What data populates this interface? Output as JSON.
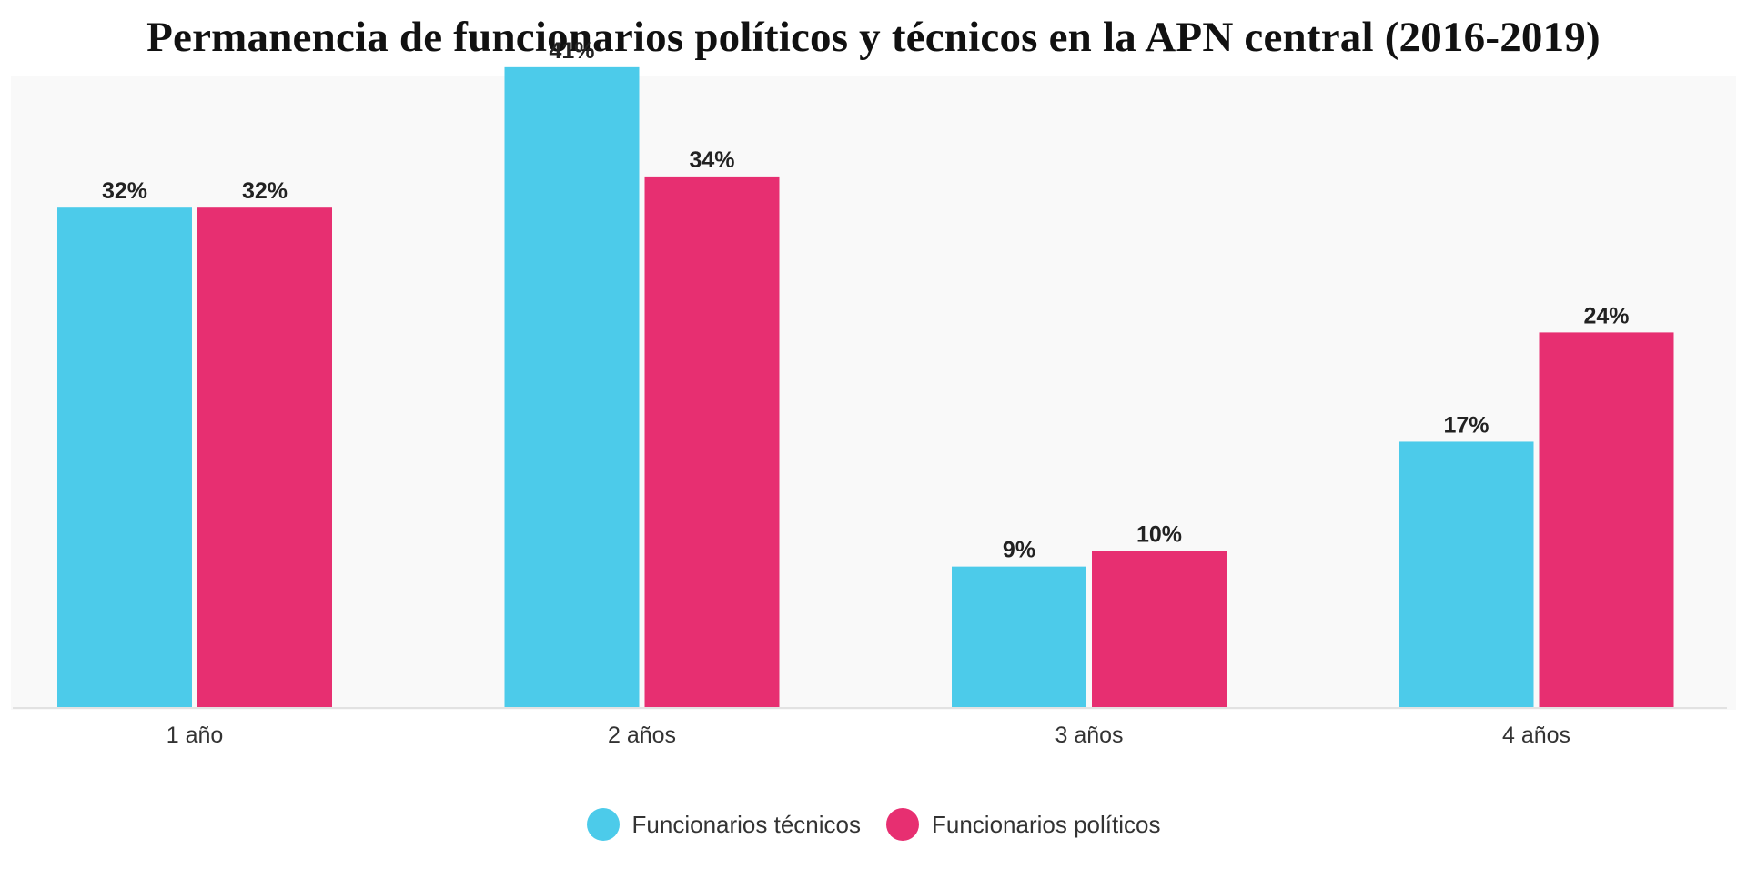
{
  "chart_data": {
    "type": "bar",
    "title": "Permanencia de funcionarios políticos y técnicos en la APN central (2016-2019)",
    "categories": [
      "1 año",
      "2 años",
      "3 años",
      "4 años"
    ],
    "series": [
      {
        "name": "Funcionarios técnicos",
        "color": "#4ccbea",
        "values": [
          32,
          41,
          9,
          17
        ],
        "labels": [
          "32%",
          "41%",
          "9%",
          "17%"
        ]
      },
      {
        "name": "Funcionarios políticos",
        "color": "#e72f71",
        "values": [
          32,
          34,
          10,
          24
        ],
        "labels": [
          "32%",
          "34%",
          "10%",
          "24%"
        ]
      }
    ],
    "xlabel": "",
    "ylabel": "",
    "ylim": [
      0,
      50
    ],
    "grid": false,
    "legend_position": "bottom-center"
  }
}
